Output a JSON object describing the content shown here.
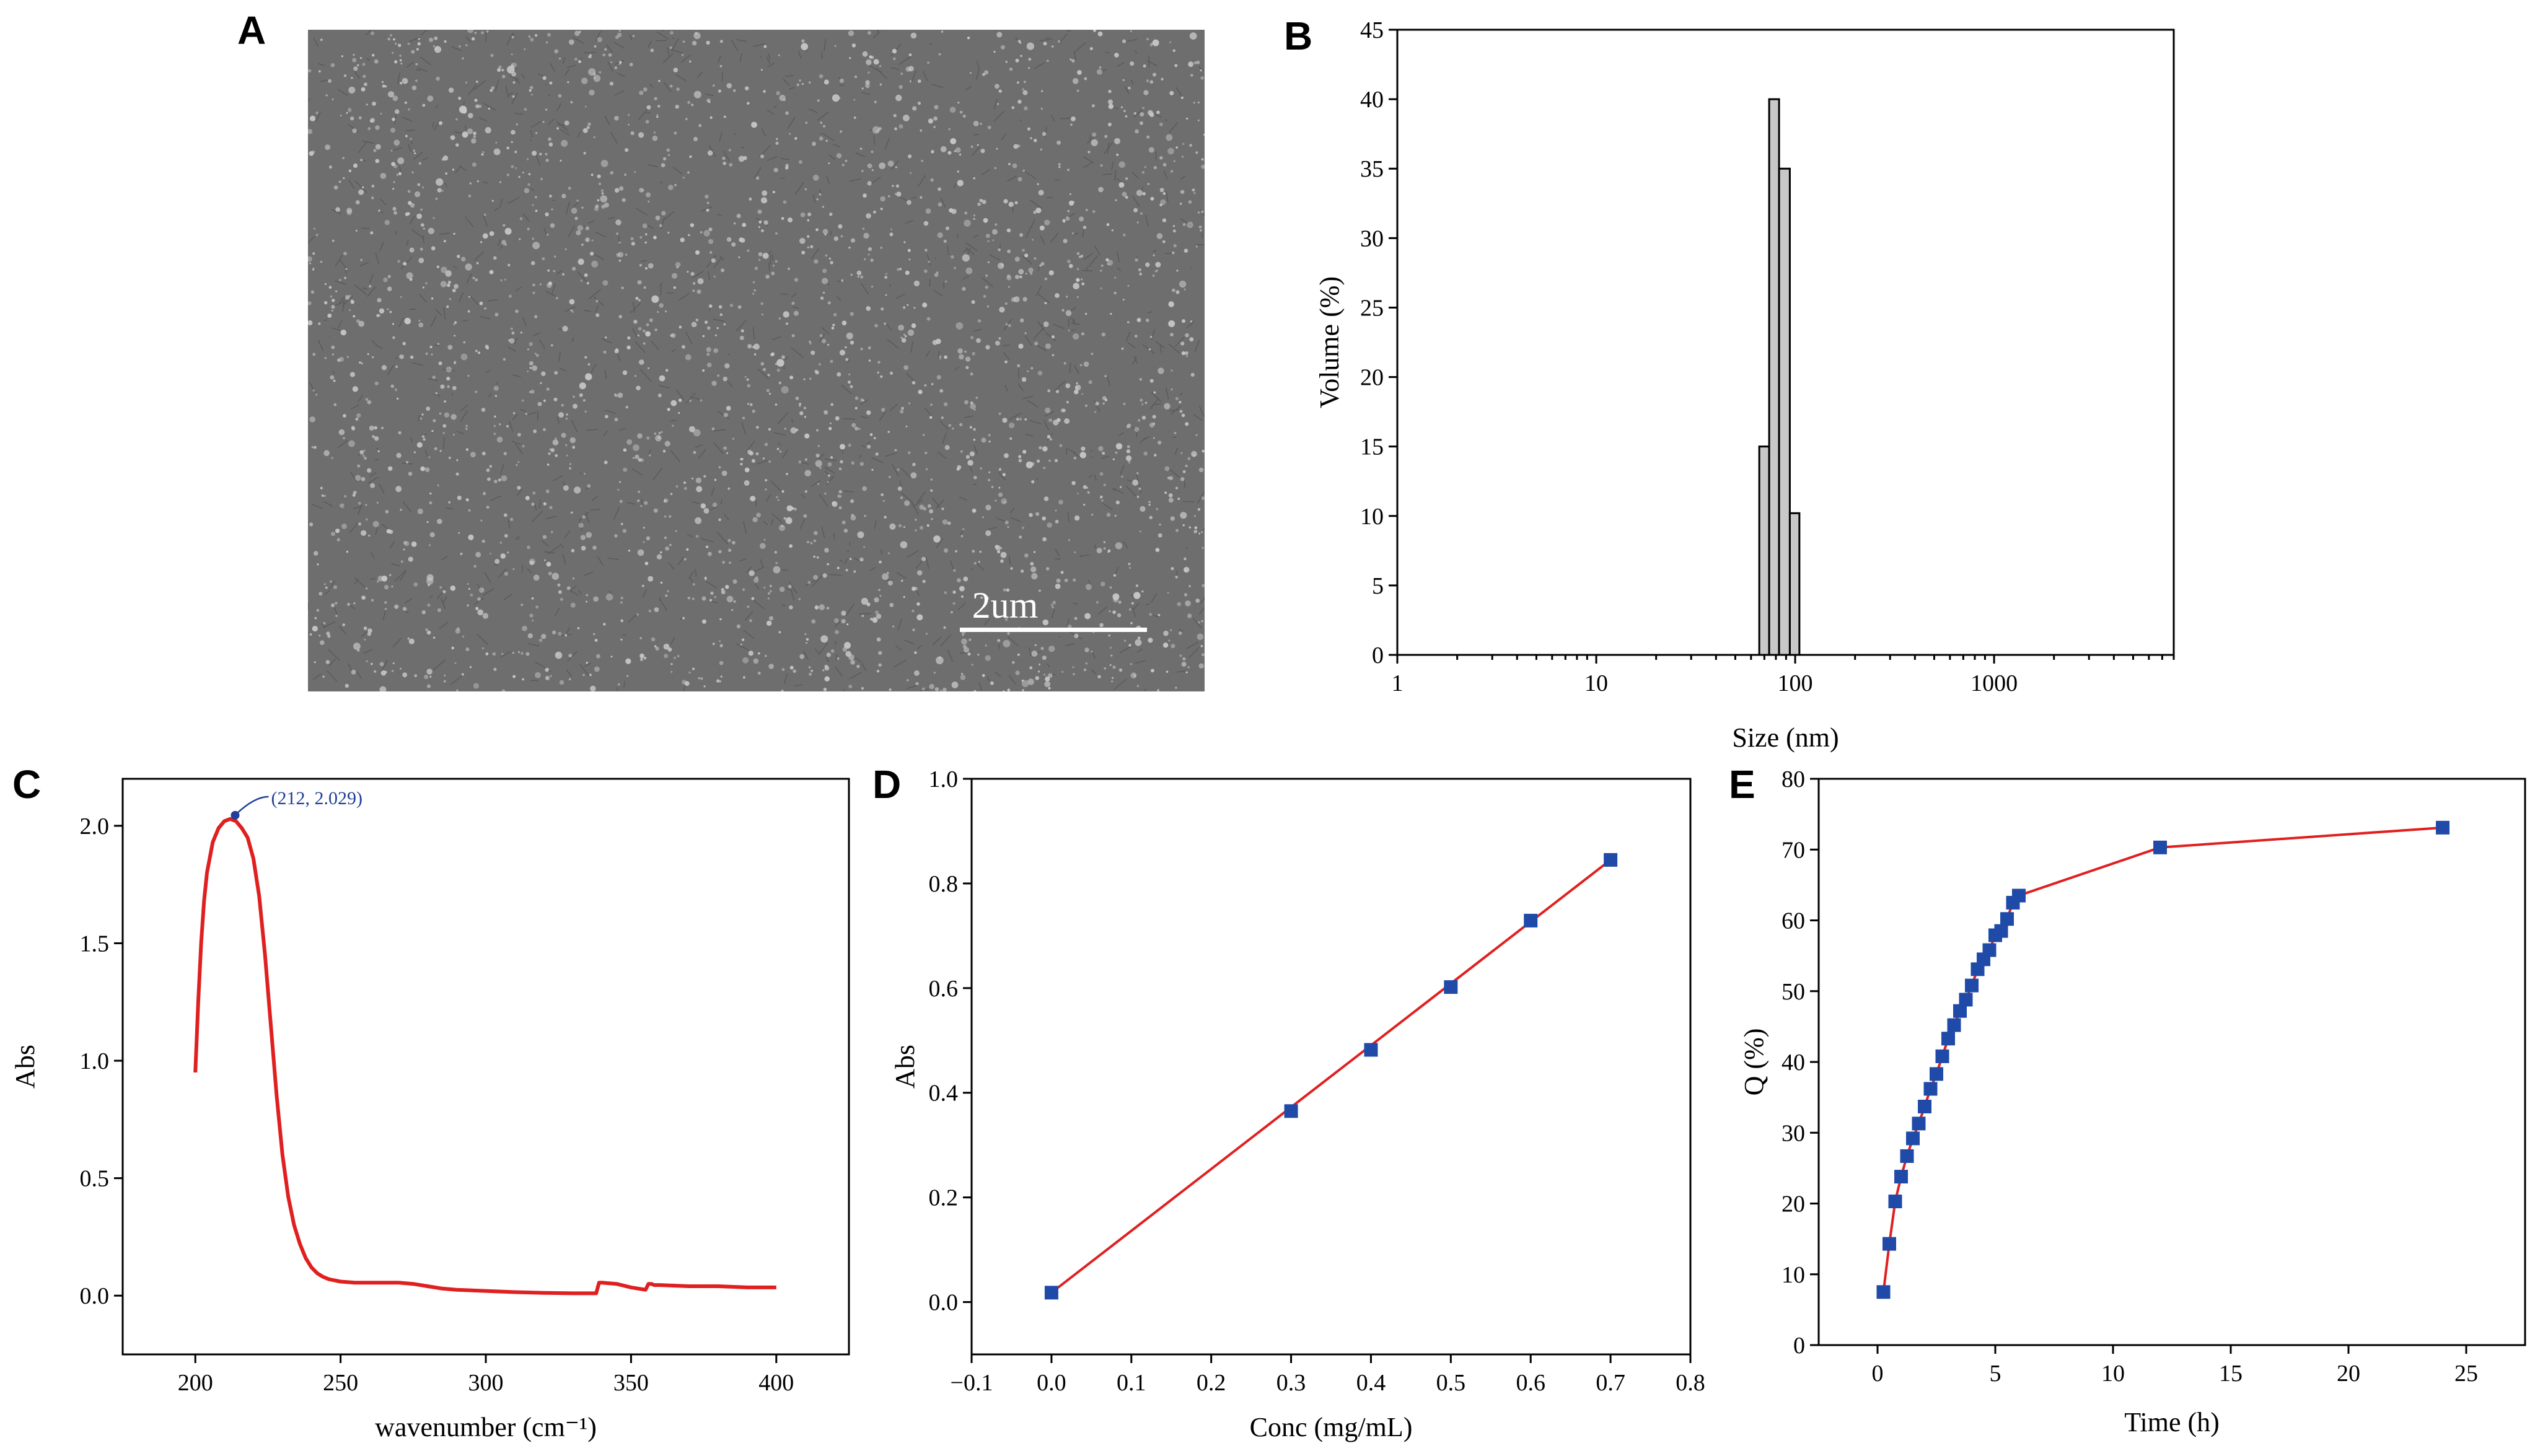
{
  "panels": {
    "A": {
      "letter": "A",
      "scale_bar_label": "2um",
      "colors": {
        "background": "#6e6e6e",
        "particle": "#c8c8c8",
        "scale_bar": "#ffffff"
      }
    }
  },
  "chart_data": [
    {
      "id": "B",
      "letter": "B",
      "type": "bar",
      "xscale": "log",
      "xlabel": "Size (nm)",
      "ylabel": "Volume (%)",
      "xlim": [
        1,
        8000
      ],
      "ylim": [
        0,
        45
      ],
      "xticks": [
        1,
        10,
        100,
        1000
      ],
      "xtick_labels": [
        "1",
        "10",
        "100",
        "1000"
      ],
      "yticks": [
        0,
        5,
        10,
        15,
        20,
        25,
        30,
        35,
        40,
        45
      ],
      "ytick_labels": [
        "0",
        "5",
        "10",
        "15",
        "20",
        "25",
        "30",
        "35",
        "40",
        "45"
      ],
      "bars": [
        {
          "x0": 66,
          "x1": 74,
          "value": 15
        },
        {
          "x0": 74,
          "x1": 83,
          "value": 40
        },
        {
          "x0": 83,
          "x1": 94,
          "value": 35
        },
        {
          "x0": 94,
          "x1": 105,
          "value": 10.2
        }
      ],
      "colors": {
        "bar_fill": "#c8c8c8",
        "bar_edge": "#000000"
      }
    },
    {
      "id": "C",
      "letter": "C",
      "type": "line",
      "xlabel": "wavenumber (cm⁻¹)",
      "ylabel": "Abs",
      "xlim": [
        175,
        425
      ],
      "ylim": [
        -0.25,
        2.2
      ],
      "xticks": [
        200,
        250,
        300,
        350,
        400
      ],
      "xtick_labels": [
        "200",
        "250",
        "300",
        "350",
        "400"
      ],
      "yticks": [
        0,
        0.5,
        1,
        1.5,
        2
      ],
      "ytick_labels": [
        "0.0",
        "0.5",
        "1.0",
        "1.5",
        "2.0"
      ],
      "x": [
        200,
        201,
        202,
        203,
        204,
        206,
        208,
        210,
        212,
        214,
        216,
        218,
        220,
        222,
        224,
        226,
        228,
        230,
        232,
        234,
        236,
        238,
        240,
        242,
        244,
        246,
        248,
        250,
        255,
        260,
        265,
        270,
        275,
        280,
        285,
        290,
        300,
        310,
        320,
        330,
        338,
        339,
        340,
        345,
        350,
        355,
        356,
        357,
        358,
        360,
        370,
        380,
        390,
        395,
        400
      ],
      "y": [
        0.95,
        1.25,
        1.5,
        1.68,
        1.8,
        1.93,
        1.99,
        2.02,
        2.029,
        2.02,
        1.99,
        1.95,
        1.86,
        1.7,
        1.45,
        1.15,
        0.85,
        0.6,
        0.42,
        0.3,
        0.22,
        0.16,
        0.12,
        0.095,
        0.08,
        0.07,
        0.065,
        0.06,
        0.055,
        0.055,
        0.055,
        0.055,
        0.05,
        0.04,
        0.03,
        0.025,
        0.02,
        0.015,
        0.012,
        0.01,
        0.01,
        0.055,
        0.055,
        0.05,
        0.035,
        0.025,
        0.05,
        0.05,
        0.045,
        0.045,
        0.04,
        0.04,
        0.035,
        0.035,
        0.035
      ],
      "annotation": {
        "text": "(212, 2.029)",
        "x": 212,
        "y": 2.029
      },
      "colors": {
        "line": "#e02020",
        "annotation": "#1f3f99"
      }
    },
    {
      "id": "D",
      "letter": "D",
      "type": "scatter",
      "xlabel": "Conc (mg/mL)",
      "ylabel": "Abs",
      "xlim": [
        -0.1,
        0.8
      ],
      "ylim": [
        -0.1,
        1.0
      ],
      "xticks": [
        -0.1,
        0,
        0.1,
        0.2,
        0.3,
        0.4,
        0.5,
        0.6,
        0.7,
        0.8
      ],
      "xtick_labels": [
        "−0.1",
        "0.0",
        "0.1",
        "0.2",
        "0.3",
        "0.4",
        "0.5",
        "0.6",
        "0.7",
        "0.8"
      ],
      "yticks": [
        0,
        0.2,
        0.4,
        0.6,
        0.8,
        1.0
      ],
      "ytick_labels": [
        "0.0",
        "0.2",
        "0.4",
        "0.6",
        "0.8",
        "1.0"
      ],
      "points": [
        {
          "x": 0.0,
          "y": 0.018
        },
        {
          "x": 0.3,
          "y": 0.365
        },
        {
          "x": 0.4,
          "y": 0.482
        },
        {
          "x": 0.5,
          "y": 0.602
        },
        {
          "x": 0.6,
          "y": 0.729
        },
        {
          "x": 0.7,
          "y": 0.845
        }
      ],
      "fit_line": {
        "x": [
          0.0,
          0.7
        ],
        "y": [
          0.018,
          0.845
        ]
      },
      "colors": {
        "marker": "#1f4aa8",
        "line": "#e02020"
      }
    },
    {
      "id": "E",
      "letter": "E",
      "type": "line",
      "xlabel": "Time (h)",
      "ylabel": "Q (%)",
      "xlim": [
        -2.5,
        27.5
      ],
      "ylim": [
        0,
        80
      ],
      "xticks": [
        0,
        5,
        10,
        15,
        20,
        25
      ],
      "xtick_labels": [
        "0",
        "5",
        "10",
        "15",
        "20",
        "25"
      ],
      "yticks": [
        0,
        10,
        20,
        30,
        40,
        50,
        60,
        70,
        80
      ],
      "ytick_labels": [
        "0",
        "10",
        "20",
        "30",
        "40",
        "50",
        "60",
        "70",
        "80"
      ],
      "x": [
        0.25,
        0.5,
        0.75,
        1.0,
        1.25,
        1.5,
        1.75,
        2.0,
        2.25,
        2.5,
        2.75,
        3.0,
        3.25,
        3.5,
        3.75,
        4.0,
        4.25,
        4.5,
        4.75,
        5.0,
        5.25,
        5.5,
        5.75,
        6.0,
        12,
        24
      ],
      "y": [
        7.5,
        14.3,
        20.3,
        23.8,
        26.7,
        29.2,
        31.3,
        33.7,
        36.2,
        38.3,
        40.8,
        43.3,
        45.2,
        47.2,
        48.8,
        50.8,
        53.1,
        54.5,
        55.8,
        57.9,
        58.5,
        60.2,
        62.5,
        63.5,
        70.3,
        73.1
      ],
      "colors": {
        "marker": "#1f4aa8",
        "line": "#e02020"
      }
    }
  ]
}
